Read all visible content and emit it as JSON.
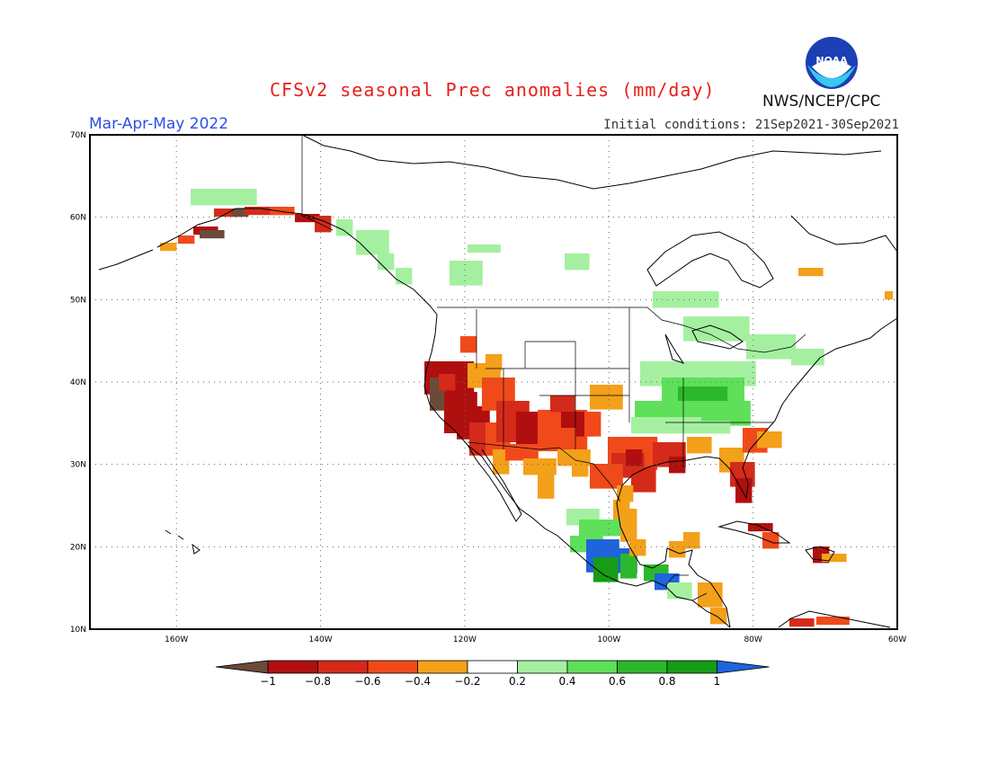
{
  "header": {
    "title": "CFSv2 seasonal Prec anomalies (mm/day)",
    "season": "Mar-Apr-May 2022",
    "initial_conditions": "Initial conditions: 21Sep2021-30Sep2021",
    "agency": "NWS/NCEP/CPC",
    "logo_text": "NOAA"
  },
  "axes": {
    "lat_labels": [
      "70N",
      "60N",
      "50N",
      "40N",
      "30N",
      "20N",
      "10N"
    ],
    "lon_labels": [
      "160W",
      "140W",
      "120W",
      "100W",
      "80W",
      "60W"
    ]
  },
  "colorbar": {
    "tick_labels": [
      "-1",
      "-0.8",
      "-0.6",
      "-0.4",
      "-0.2",
      "0.2",
      "0.4",
      "0.6",
      "0.8",
      "1"
    ],
    "colors": [
      "#6b4a3a",
      "#b00f0f",
      "#d42a1a",
      "#f04a1a",
      "#f3a01a",
      "#ffffff",
      "#a4f0a0",
      "#5ee05a",
      "#2cb82c",
      "#169c16",
      "#1e64dc"
    ]
  },
  "map_data": {
    "lon_range": [
      -172,
      -60
    ],
    "lat_range": [
      10,
      70
    ],
    "units": "mm/day",
    "anomaly_regions": [
      {
        "name": "California",
        "level": -1
      },
      {
        "name": "Southwest US",
        "level": -0.8
      },
      {
        "name": "Texas / Gulf coast",
        "level": -0.6
      },
      {
        "name": "Florida",
        "level": -0.8
      },
      {
        "name": "Southern Alaska coast",
        "level": -0.8
      },
      {
        "name": "Ohio Valley",
        "level": 0.6
      },
      {
        "name": "Great Lakes / Northeast",
        "level": 0.4
      },
      {
        "name": "Southern Mexico",
        "level": 1
      },
      {
        "name": "Caribbean (Hispaniola, Jamaica)",
        "level": -0.6
      }
    ]
  }
}
